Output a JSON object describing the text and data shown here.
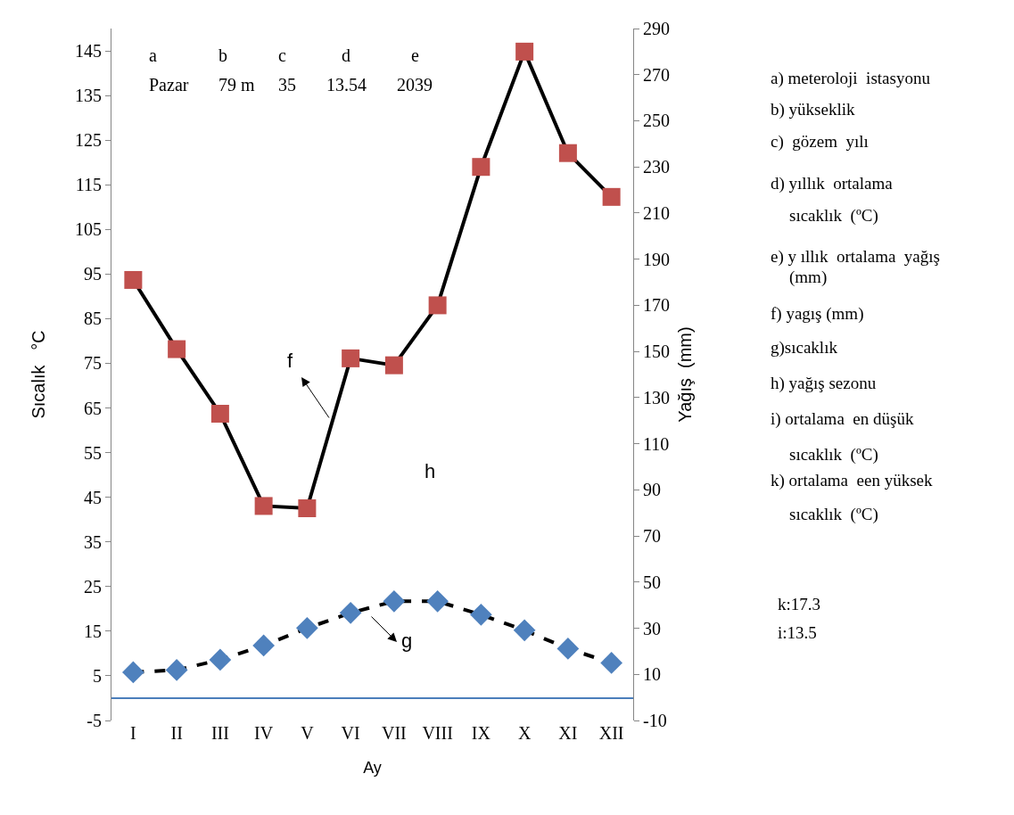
{
  "chart_data": {
    "type": "line",
    "xlabel": "Ay",
    "ylabel": "Sıcalık   °C",
    "y2label": "Yağış  (mm)",
    "categories": [
      "I",
      "II",
      "III",
      "IV",
      "V",
      "VI",
      "VII",
      "VIII",
      "IX",
      "X",
      "XI",
      "XII"
    ],
    "series": [
      {
        "color": "#c0504d",
        "axis": "y2",
        "marker": "square",
        "line_style": "solid",
        "values": [
          181,
          151,
          123,
          83,
          82,
          147,
          144,
          170,
          230,
          280,
          236,
          217
        ]
      },
      {
        "color": "#4f81bd",
        "marker": "diamond",
        "line_style": "dashed",
        "values": [
          5.8,
          6.3,
          8.6,
          11.8,
          15.7,
          19.1,
          21.7,
          21.7,
          18.7,
          15.2,
          11.1,
          7.9
        ]
      }
    ],
    "ylim": [
      -5,
      150
    ],
    "yticks": [
      -5,
      5,
      15,
      25,
      35,
      45,
      55,
      65,
      75,
      85,
      95,
      105,
      115,
      125,
      135,
      145
    ],
    "y2lim": [
      -10,
      290
    ],
    "y2ticks": [
      -10,
      10,
      30,
      50,
      70,
      90,
      110,
      130,
      150,
      170,
      190,
      210,
      230,
      250,
      270,
      290
    ],
    "annotations": [
      "a",
      "Pazar",
      "b",
      "79 m",
      "c",
      "35",
      "d",
      "13.54",
      "e",
      "2039",
      "f",
      "g",
      "h",
      "a) meteroloji  istasyonu",
      "b) yükseklik",
      "c)  gözem  yılı",
      "d) yıllık  ortalama",
      "sıcaklık  (ºC)",
      "e) y ıllık  ortalama  yağış",
      "(mm)",
      "f) yagış (mm)",
      "g)sıcaklık",
      "h) yağış sezonu",
      "i) ortalama  en düşük",
      "sıcaklık  (ºC)",
      "k) ortalama  een yüksek",
      "sıcaklık  (ºC)",
      "k:17.3",
      "i:13.5"
    ]
  }
}
